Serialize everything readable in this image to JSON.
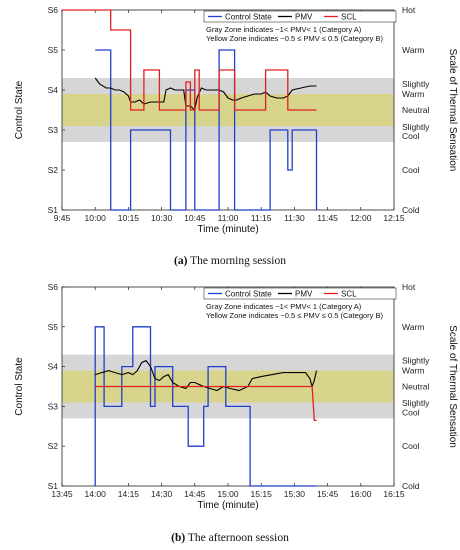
{
  "charts": [
    {
      "type": "line",
      "caption_label": "(a)",
      "caption_text": "The morning session",
      "xlabel": "Time (minute)",
      "ylabel_left": "Control State",
      "ylabel_right": "Scale of Thermal Sensation",
      "x_ticks": [
        "9:45",
        "10:00",
        "10:15",
        "10:30",
        "10:45",
        "11:00",
        "11:15",
        "11:30",
        "11:45",
        "12:00",
        "12:15"
      ],
      "x_range": [
        0,
        150
      ],
      "y_ticks_left": [
        "S1",
        "S2",
        "S3",
        "S4",
        "S5",
        "S6"
      ],
      "y_range": [
        1,
        6
      ],
      "y_ticks_right": [
        {
          "y": 6,
          "label": "Hot"
        },
        {
          "y": 5,
          "label": "Warm"
        },
        {
          "y": 4.15,
          "label": "Slightly"
        },
        {
          "y": 3.9,
          "label": "Warm"
        },
        {
          "y": 3.5,
          "label": "Neutral"
        },
        {
          "y": 3.08,
          "label": "Slightly"
        },
        {
          "y": 2.85,
          "label": "Cool"
        },
        {
          "y": 2,
          "label": "Cool"
        },
        {
          "y": 1,
          "label": "Cold"
        }
      ],
      "legend": [
        "Control State",
        "PMV",
        "SCL"
      ],
      "notes": [
        "Gray Zone indicates −1< PMV< 1 (Category A)",
        "Yellow Zone indicates −0.5 ≤ PMV ≤ 0.5 (Category B)"
      ],
      "gray_zone": [
        2.7,
        4.3
      ],
      "yellow_zone": [
        3.1,
        3.9
      ],
      "series": [
        {
          "name": "Control State",
          "color": "#1f3fcc",
          "points": [
            [
              15,
              5
            ],
            [
              22,
              5
            ],
            [
              22,
              1
            ],
            [
              31,
              1
            ],
            [
              31,
              3
            ],
            [
              49,
              3
            ],
            [
              49,
              1
            ],
            [
              56,
              1
            ],
            [
              56,
              4
            ],
            [
              60,
              4
            ],
            [
              60,
              1
            ],
            [
              71,
              1
            ],
            [
              71,
              5
            ],
            [
              78,
              5
            ],
            [
              78,
              1
            ],
            [
              94,
              1
            ],
            [
              94,
              3
            ],
            [
              102,
              3
            ],
            [
              102,
              2
            ],
            [
              104,
              2
            ],
            [
              104,
              3
            ],
            [
              115,
              3
            ],
            [
              115,
              1
            ]
          ]
        },
        {
          "name": "PMV",
          "color": "#000000",
          "points": [
            [
              15,
              4.3
            ],
            [
              17,
              4.15
            ],
            [
              20,
              4.05
            ],
            [
              22,
              4.05
            ],
            [
              24,
              4.0
            ],
            [
              26,
              4.0
            ],
            [
              28,
              3.95
            ],
            [
              30,
              3.85
            ],
            [
              31,
              3.7
            ],
            [
              33,
              3.7
            ],
            [
              35,
              3.75
            ],
            [
              37,
              3.65
            ],
            [
              40,
              3.7
            ],
            [
              43,
              3.7
            ],
            [
              46,
              3.7
            ],
            [
              47,
              4.0
            ],
            [
              49,
              4.05
            ],
            [
              51,
              4.0
            ],
            [
              53,
              4.0
            ],
            [
              55,
              4.0
            ],
            [
              56,
              3.6
            ],
            [
              58,
              3.6
            ],
            [
              60,
              3.5
            ],
            [
              61,
              3.8
            ],
            [
              63,
              4.05
            ],
            [
              65,
              4.0
            ],
            [
              67,
              4.0
            ],
            [
              69,
              4.0
            ],
            [
              71,
              4.0
            ],
            [
              73,
              3.95
            ],
            [
              75,
              3.8
            ],
            [
              77,
              3.75
            ],
            [
              79,
              3.75
            ],
            [
              81,
              3.8
            ],
            [
              84,
              3.85
            ],
            [
              87,
              3.9
            ],
            [
              90,
              3.9
            ],
            [
              92,
              3.95
            ],
            [
              94,
              3.85
            ],
            [
              97,
              3.8
            ],
            [
              100,
              3.8
            ],
            [
              102,
              3.85
            ],
            [
              104,
              4.0
            ],
            [
              108,
              4.05
            ],
            [
              112,
              4.1
            ],
            [
              115,
              4.1
            ]
          ]
        },
        {
          "name": "SCL",
          "color": "#e02020",
          "points": [
            [
              0,
              6
            ],
            [
              22,
              6
            ],
            [
              22,
              5.5
            ],
            [
              31,
              5.5
            ],
            [
              31,
              3.5
            ],
            [
              37,
              3.5
            ],
            [
              37,
              4.5
            ],
            [
              44,
              4.5
            ],
            [
              44,
              3.5
            ],
            [
              56,
              3.5
            ],
            [
              56,
              4.2
            ],
            [
              58,
              4.2
            ],
            [
              58,
              3.5
            ],
            [
              60,
              3.5
            ],
            [
              60,
              4.5
            ],
            [
              62,
              4.5
            ],
            [
              62,
              3.5
            ],
            [
              71,
              3.5
            ],
            [
              71,
              4.5
            ],
            [
              78,
              4.5
            ],
            [
              78,
              3.5
            ],
            [
              92,
              3.5
            ],
            [
              92,
              4.5
            ],
            [
              102,
              4.5
            ],
            [
              102,
              3.5
            ],
            [
              115,
              3.5
            ]
          ]
        }
      ]
    },
    {
      "type": "line",
      "caption_label": "(b)",
      "caption_text": "The afternoon session",
      "xlabel": "Time (minute)",
      "ylabel_left": "Control State",
      "ylabel_right": "Scale of Thermal Sensation",
      "x_ticks": [
        "13:45",
        "14:00",
        "14:15",
        "14:30",
        "14:45",
        "15:00",
        "15:15",
        "15:30",
        "15:45",
        "16:00",
        "16:15"
      ],
      "x_range": [
        0,
        150
      ],
      "y_ticks_left": [
        "S1",
        "S2",
        "S3",
        "S4",
        "S5",
        "S6"
      ],
      "y_range": [
        1,
        6
      ],
      "y_ticks_right": [
        {
          "y": 6,
          "label": "Hot"
        },
        {
          "y": 5,
          "label": "Warm"
        },
        {
          "y": 4.15,
          "label": "Slightly"
        },
        {
          "y": 3.9,
          "label": "Warm"
        },
        {
          "y": 3.5,
          "label": "Neutral"
        },
        {
          "y": 3.08,
          "label": "Slightly"
        },
        {
          "y": 2.85,
          "label": "Cool"
        },
        {
          "y": 2,
          "label": "Cool"
        },
        {
          "y": 1,
          "label": "Cold"
        }
      ],
      "legend": [
        "Control State",
        "PMV",
        "SCL"
      ],
      "notes": [
        "Gray Zone indicates −1< PMV< 1 (Category A)",
        "Yellow Zone indicates −0.5 ≤ PMV ≤ 0.5 (Category B)"
      ],
      "gray_zone": [
        2.7,
        4.3
      ],
      "yellow_zone": [
        3.1,
        3.9
      ],
      "series": [
        {
          "name": "Control State",
          "color": "#1f3fcc",
          "points": [
            [
              15,
              1
            ],
            [
              15,
              5
            ],
            [
              19,
              5
            ],
            [
              19,
              3
            ],
            [
              27,
              3
            ],
            [
              27,
              4
            ],
            [
              32,
              4
            ],
            [
              32,
              5
            ],
            [
              40,
              5
            ],
            [
              40,
              3
            ],
            [
              42,
              3
            ],
            [
              42,
              4
            ],
            [
              50,
              4
            ],
            [
              50,
              3
            ],
            [
              57,
              3
            ],
            [
              57,
              2
            ],
            [
              64,
              2
            ],
            [
              64,
              3
            ],
            [
              66,
              3
            ],
            [
              66,
              4
            ],
            [
              74,
              4
            ],
            [
              74,
              3
            ],
            [
              85,
              3
            ],
            [
              85,
              1
            ],
            [
              115,
              1
            ]
          ]
        },
        {
          "name": "PMV",
          "color": "#000000",
          "points": [
            [
              15,
              3.8
            ],
            [
              18,
              3.85
            ],
            [
              21,
              3.9
            ],
            [
              24,
              3.85
            ],
            [
              27,
              3.8
            ],
            [
              30,
              3.85
            ],
            [
              32,
              3.8
            ],
            [
              34,
              3.9
            ],
            [
              36,
              4.1
            ],
            [
              38,
              4.15
            ],
            [
              40,
              4.0
            ],
            [
              42,
              3.7
            ],
            [
              44,
              3.65
            ],
            [
              46,
              3.75
            ],
            [
              48,
              3.8
            ],
            [
              50,
              3.6
            ],
            [
              53,
              3.5
            ],
            [
              56,
              3.45
            ],
            [
              58,
              3.6
            ],
            [
              60,
              3.6
            ],
            [
              62,
              3.55
            ],
            [
              64,
              3.5
            ],
            [
              67,
              3.45
            ],
            [
              70,
              3.4
            ],
            [
              73,
              3.5
            ],
            [
              76,
              3.45
            ],
            [
              80,
              3.4
            ],
            [
              84,
              3.5
            ],
            [
              86,
              3.7
            ],
            [
              90,
              3.75
            ],
            [
              95,
              3.8
            ],
            [
              100,
              3.85
            ],
            [
              105,
              3.85
            ],
            [
              110,
              3.85
            ],
            [
              112,
              3.7
            ],
            [
              113,
              3.5
            ],
            [
              114,
              3.65
            ],
            [
              115,
              3.9
            ]
          ]
        },
        {
          "name": "SCL",
          "color": "#e02020",
          "points": [
            [
              15,
              3.5
            ],
            [
              113,
              3.5
            ],
            [
              114,
              2.65
            ],
            [
              115,
              2.65
            ]
          ]
        }
      ]
    }
  ]
}
